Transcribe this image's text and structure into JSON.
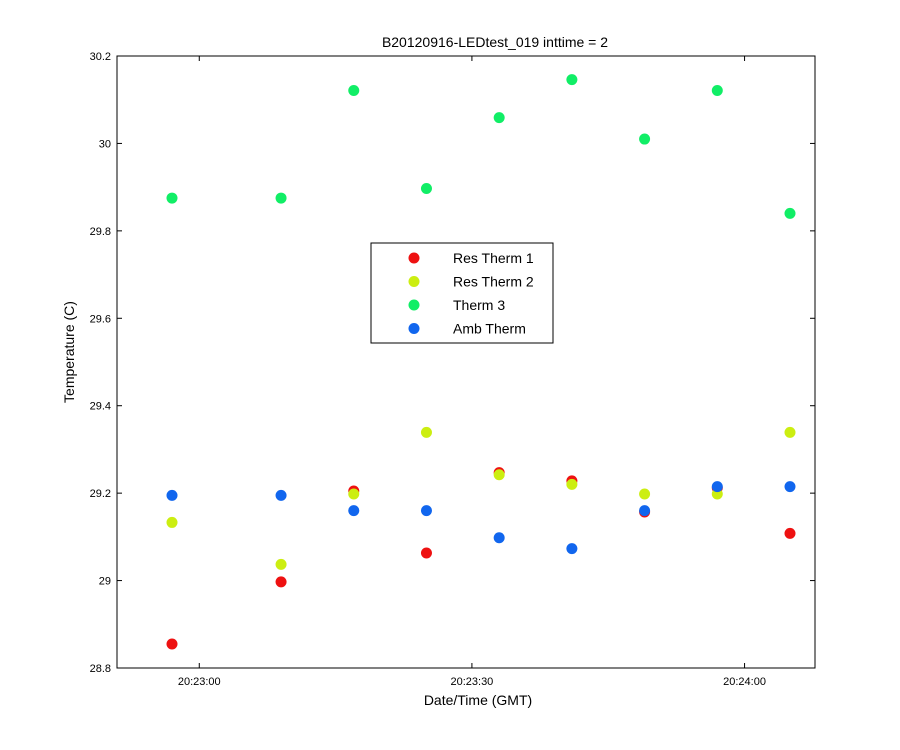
{
  "chart_data": {
    "type": "scatter",
    "title": "B20120916-LEDtest_019 inttime = 2",
    "xlabel": "Date/Time (GMT)",
    "ylabel": "Temperature (C)",
    "ylim": [
      28.8,
      30.2
    ],
    "yticks": [
      28.8,
      29,
      29.2,
      29.4,
      29.6,
      29.8,
      30,
      30.2
    ],
    "ytick_labels": [
      "28.8",
      "29",
      "29.2",
      "29.4",
      "29.6",
      "29.8",
      "30",
      "30.2"
    ],
    "xlim": [
      "20:22:57",
      "20:24:05"
    ],
    "xticks": [
      "20:23:00",
      "20:23:30",
      "20:24:00"
    ],
    "xtick_labels": [
      "20:23:00",
      "20:23:30",
      "20:24:00"
    ],
    "grid": false,
    "legend_position": "center",
    "x": [
      "20:22:57",
      "20:23:09",
      "20:23:17",
      "20:23:25",
      "20:23:33",
      "20:23:41",
      "20:23:49",
      "20:23:57",
      "20:24:05"
    ],
    "series": [
      {
        "name": "Res Therm 1",
        "color": "#ee1111",
        "values": [
          28.855,
          28.997,
          29.205,
          29.063,
          29.247,
          29.228,
          29.157,
          29.212,
          29.108
        ]
      },
      {
        "name": "Res Therm 2",
        "color": "#ccee11",
        "values": [
          29.133,
          29.037,
          29.198,
          29.339,
          29.242,
          29.22,
          29.198,
          29.198,
          29.339
        ]
      },
      {
        "name": "Therm 3",
        "color": "#11ee66",
        "values": [
          29.875,
          29.875,
          30.121,
          29.897,
          30.059,
          30.146,
          30.01,
          30.121,
          29.84
        ]
      },
      {
        "name": "Amb Therm",
        "color": "#1166ee",
        "values": [
          29.195,
          29.195,
          29.16,
          29.16,
          29.098,
          29.073,
          29.16,
          29.215,
          29.215
        ]
      }
    ]
  }
}
